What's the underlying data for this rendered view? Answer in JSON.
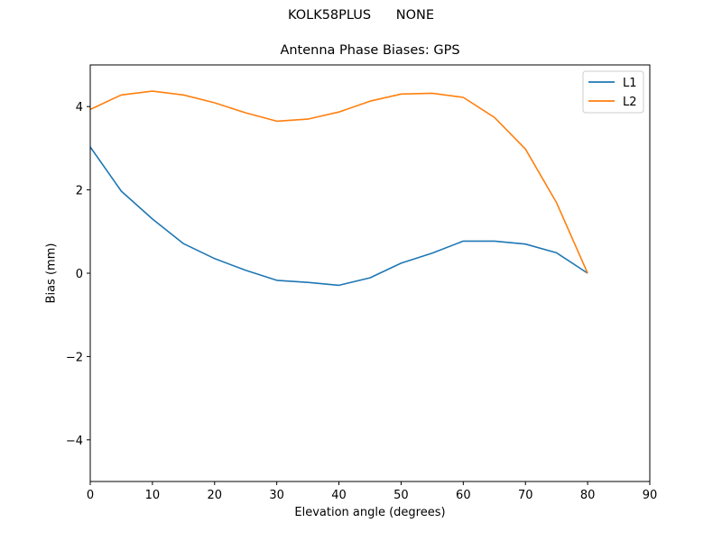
{
  "figure": {
    "suptitle": "KOLK58PLUS      NONE",
    "title": "Antenna Phase Biases: GPS",
    "xlabel": "Elevation angle (degrees)",
    "ylabel": "Bias (mm)"
  },
  "colors": {
    "L1": "#1f77b4",
    "L2": "#ff7f0e",
    "axes": "#000000",
    "legend_border": "#cccccc"
  },
  "chart_data": {
    "type": "line",
    "title": "Antenna Phase Biases: GPS",
    "suptitle": "KOLK58PLUS      NONE",
    "xlabel": "Elevation angle (degrees)",
    "ylabel": "Bias (mm)",
    "xlim": [
      0,
      90
    ],
    "ylim": [
      -5,
      5
    ],
    "xticks": [
      0,
      10,
      20,
      30,
      40,
      50,
      60,
      70,
      80,
      90
    ],
    "yticks": [
      -4,
      -2,
      0,
      2,
      4
    ],
    "grid": false,
    "legend_position": "upper right",
    "x": [
      0,
      5,
      10,
      15,
      20,
      25,
      30,
      35,
      40,
      45,
      50,
      55,
      60,
      65,
      70,
      75,
      80
    ],
    "series": [
      {
        "name": "L1",
        "color": "#1f77b4",
        "values": [
          3.03,
          1.97,
          1.3,
          0.71,
          0.35,
          0.07,
          -0.17,
          -0.22,
          -0.29,
          -0.11,
          0.24,
          0.48,
          0.77,
          0.77,
          0.7,
          0.49,
          0.0
        ]
      },
      {
        "name": "L2",
        "color": "#ff7f0e",
        "values": [
          3.93,
          4.28,
          4.37,
          4.28,
          4.09,
          3.85,
          3.65,
          3.7,
          3.87,
          4.13,
          4.3,
          4.32,
          4.22,
          3.74,
          2.98,
          1.69,
          0.0
        ]
      }
    ]
  }
}
